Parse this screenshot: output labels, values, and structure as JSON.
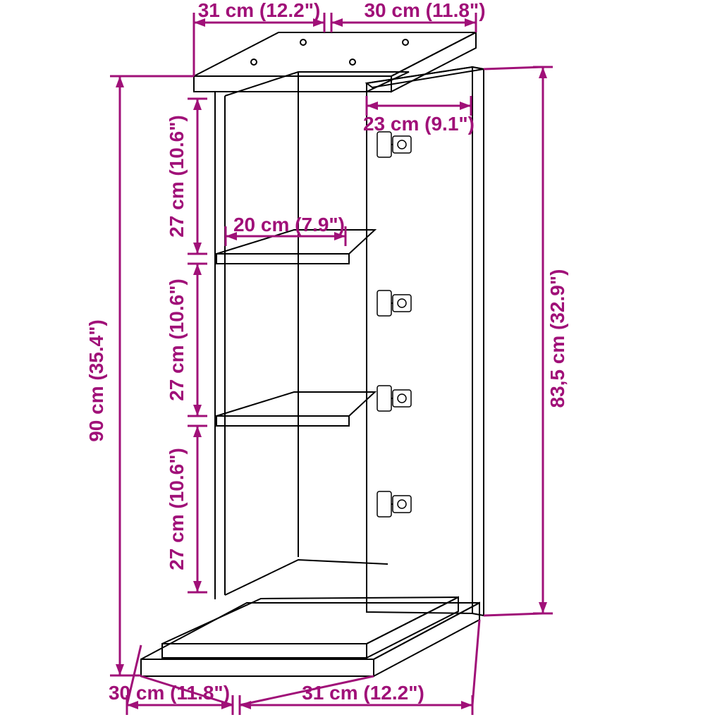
{
  "type": "technical-dimension-drawing",
  "accent_color": "#a01078",
  "line_color": "#000000",
  "background_color": "#ffffff",
  "font_family": "Arial",
  "label_fontsize_pt": 21,
  "label_fontweight": 700,
  "stroke_width_cabinet": 2,
  "stroke_width_dim": 3,
  "dimensions": {
    "top_width": {
      "text": "31 cm (12.2\")"
    },
    "top_depth": {
      "text": "30 cm (11.8\")"
    },
    "door_inner_width": {
      "text": "23 cm (9.1\")"
    },
    "shelf_depth": {
      "text": "20 cm (7.9\")"
    },
    "compartment_h1": {
      "text": "27 cm (10.6\")"
    },
    "compartment_h2": {
      "text": "27 cm (10.6\")"
    },
    "compartment_h3": {
      "text": "27 cm (10.6\")"
    },
    "total_height": {
      "text": "90 cm (35.4\")"
    },
    "door_height": {
      "text": "83,5 cm (32.9\")"
    },
    "base_width": {
      "text": "31 cm (12.2\")"
    },
    "base_depth": {
      "text": "30 cm (11.8\")"
    }
  }
}
